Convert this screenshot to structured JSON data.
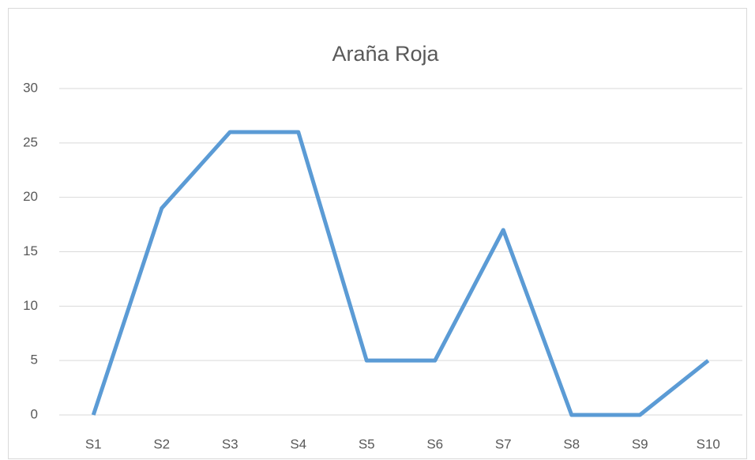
{
  "chart_data": {
    "type": "line",
    "title": "Araña Roja",
    "categories": [
      "S1",
      "S2",
      "S3",
      "S4",
      "S5",
      "S6",
      "S7",
      "S8",
      "S9",
      "S10"
    ],
    "values": [
      0,
      19,
      26,
      26,
      5,
      5,
      17,
      0,
      0,
      5
    ],
    "color": "#5b9bd5",
    "ylim": [
      0,
      30
    ],
    "yticks": [
      0,
      5,
      10,
      15,
      20,
      25,
      30
    ],
    "grid": true
  }
}
